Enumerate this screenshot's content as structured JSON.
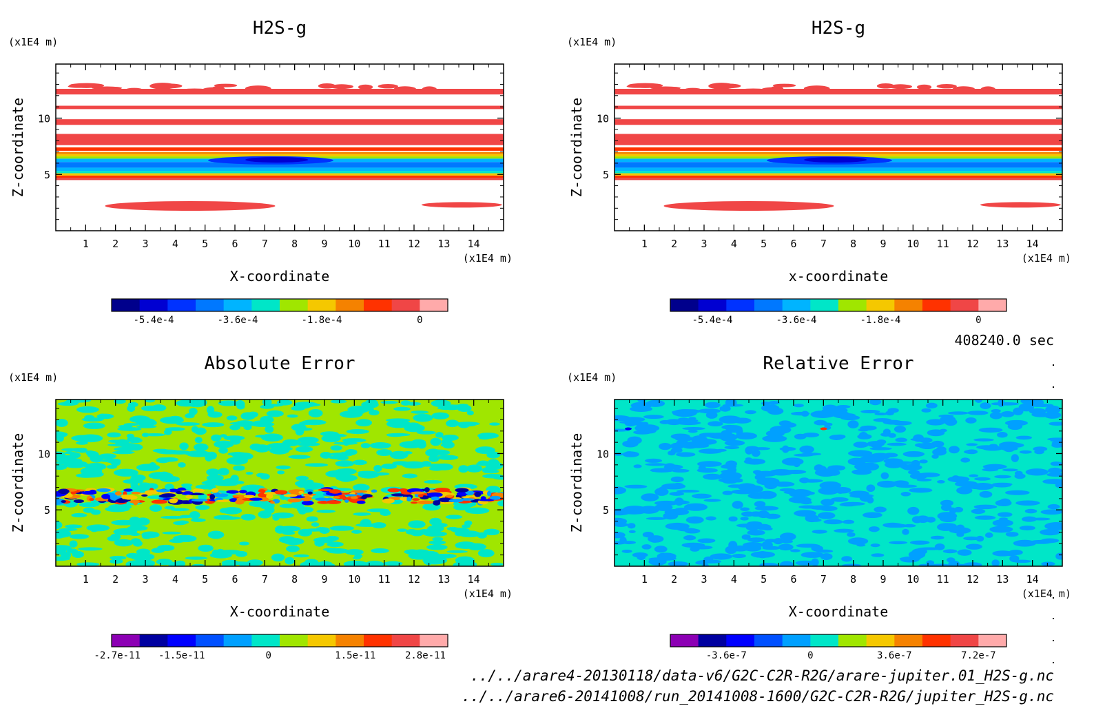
{
  "chart_data": [
    {
      "type": "heatmap",
      "title": "H2S-g",
      "xlabel": "X-coordinate",
      "ylabel": "Z-coordinate",
      "x_unit": "(x1E4 m)",
      "y_unit": "(x1E4 m)",
      "xlim": [
        0,
        15
      ],
      "ylim": [
        0,
        14.8
      ],
      "x_ticks": [
        "1",
        "2",
        "3",
        "4",
        "5",
        "6",
        "7",
        "8",
        "9",
        "10",
        "11",
        "12",
        "13",
        "14"
      ],
      "y_ticks": [
        "5",
        "10"
      ],
      "pattern": "bands",
      "colorbar": {
        "colors": [
          "#00008c",
          "#0000d2",
          "#0032ff",
          "#0078ff",
          "#00b4ff",
          "#00e6c8",
          "#a0e600",
          "#f5c800",
          "#f58200",
          "#ff3200",
          "#f04646",
          "#ffaaaa"
        ],
        "tick_labels": [
          "-5.4e-4",
          "-3.6e-4",
          "-1.8e-4",
          "0"
        ]
      }
    },
    {
      "type": "heatmap",
      "title": "H2S-g",
      "xlabel": "x-coordinate",
      "ylabel": "Z-coordinate",
      "x_unit": "(x1E4 m)",
      "y_unit": "(x1E4 m)",
      "xlim": [
        0,
        15
      ],
      "ylim": [
        0,
        14.8
      ],
      "x_ticks": [
        "1",
        "2",
        "3",
        "4",
        "5",
        "6",
        "7",
        "8",
        "9",
        "10",
        "11",
        "12",
        "13",
        "14"
      ],
      "y_ticks": [
        "5",
        "10"
      ],
      "pattern": "bands",
      "colorbar": {
        "colors": [
          "#00008c",
          "#0000d2",
          "#0032ff",
          "#0078ff",
          "#00b4ff",
          "#00e6c8",
          "#a0e600",
          "#f5c800",
          "#f58200",
          "#ff3200",
          "#f04646",
          "#ffaaaa"
        ],
        "tick_labels": [
          "-5.4e-4",
          "-3.6e-4",
          "-1.8e-4",
          "0"
        ]
      }
    },
    {
      "type": "heatmap",
      "title": "Absolute Error",
      "xlabel": "X-coordinate",
      "ylabel": "Z-coordinate",
      "x_unit": "(x1E4 m)",
      "y_unit": "(x1E4 m)",
      "xlim": [
        0,
        15
      ],
      "ylim": [
        0,
        14.8
      ],
      "x_ticks": [
        "1",
        "2",
        "3",
        "4",
        "5",
        "6",
        "7",
        "8",
        "9",
        "10",
        "11",
        "12",
        "13",
        "14"
      ],
      "y_ticks": [
        "5",
        "10"
      ],
      "pattern": "noise-green",
      "colorbar": {
        "colors": [
          "#8c00b4",
          "#0000a0",
          "#0000ff",
          "#0050ff",
          "#00a0ff",
          "#00e6c8",
          "#a0e600",
          "#f5c800",
          "#f58200",
          "#ff3200",
          "#f04646",
          "#ffaaaa"
        ],
        "tick_labels": [
          "-2.7e-11",
          "-1.5e-11",
          "0",
          "1.5e-11",
          "2.8e-11"
        ]
      }
    },
    {
      "type": "heatmap",
      "title": "Relative Error",
      "xlabel": "X-coordinate",
      "ylabel": "Z-coordinate",
      "x_unit": "(x1E4 m)",
      "y_unit": "(x1E4 m)",
      "xlim": [
        0,
        15
      ],
      "ylim": [
        0,
        14.8
      ],
      "x_ticks": [
        "1",
        "2",
        "3",
        "4",
        "5",
        "6",
        "7",
        "8",
        "9",
        "10",
        "11",
        "12",
        "13",
        "14"
      ],
      "y_ticks": [
        "5",
        "10"
      ],
      "pattern": "noise-blue",
      "colorbar": {
        "colors": [
          "#8c00b4",
          "#0000a0",
          "#0000ff",
          "#0050ff",
          "#00a0ff",
          "#00e6c8",
          "#a0e600",
          "#f5c800",
          "#f58200",
          "#ff3200",
          "#f04646",
          "#ffaaaa"
        ],
        "tick_labels": [
          "-3.6e-7",
          "0",
          "3.6e-7",
          "7.2e-7"
        ]
      }
    }
  ],
  "time_label": "408240.0 sec",
  "file_paths": [
    "../../arare4-20130118/data-v6/G2C-C2R-R2G/arare-jupiter.01_H2S-g.nc",
    "../../arare6-20141008/run_20141008-1600/G2C-C2R-R2G/jupiter_H2S-g.nc"
  ]
}
